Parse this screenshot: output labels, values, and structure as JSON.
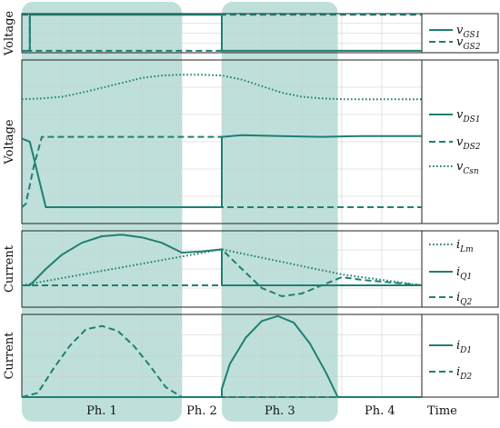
{
  "chart_data": {
    "type": "line",
    "x_axis_label": "Time",
    "phases": [
      {
        "label": "Ph. 1",
        "start": 0.0,
        "end": 0.4,
        "shaded": true
      },
      {
        "label": "Ph. 2",
        "start": 0.4,
        "end": 0.5,
        "shaded": false
      },
      {
        "label": "Ph. 3",
        "start": 0.5,
        "end": 0.79,
        "shaded": true
      },
      {
        "label": "Ph. 4",
        "start": 0.79,
        "end": 1.0,
        "shaded": false
      }
    ],
    "colors": {
      "trace": "#1f7f72",
      "shade": "#bfe0da",
      "grid": "#cccccc"
    },
    "panels": [
      {
        "ylabel": "Voltage",
        "ylim": [
          0,
          1
        ],
        "series": [
          {
            "name": "v",
            "sub": "GS1",
            "style": "solid",
            "x": [
              0,
              0.02,
              0.02,
              0.5,
              0.5,
              1.0
            ],
            "y": [
              0.05,
              0.05,
              0.97,
              0.97,
              0.05,
              0.05
            ]
          },
          {
            "name": "v",
            "sub": "GS2",
            "style": "dashed",
            "x": [
              0,
              0.02,
              0.02,
              0.5,
              0.5,
              1.0
            ],
            "y": [
              0.97,
              0.97,
              0.05,
              0.05,
              0.97,
              0.97
            ]
          }
        ]
      },
      {
        "ylabel": "Voltage",
        "ylim": [
          0,
          1
        ],
        "series": [
          {
            "name": "v",
            "sub": "DS1",
            "style": "solid",
            "x": [
              0,
              0.02,
              0.04,
              0.06,
              0.4,
              0.5,
              0.5,
              0.55,
              0.65,
              0.75,
              0.85,
              1.0
            ],
            "y": [
              0.52,
              0.5,
              0.3,
              0.1,
              0.1,
              0.1,
              0.53,
              0.54,
              0.535,
              0.53,
              0.535,
              0.535
            ]
          },
          {
            "name": "v",
            "sub": "DS2",
            "style": "dashed",
            "x": [
              0,
              0.01,
              0.03,
              0.05,
              0.4,
              0.5,
              0.5,
              1.0
            ],
            "y": [
              0.1,
              0.12,
              0.35,
              0.53,
              0.53,
              0.53,
              0.1,
              0.1
            ]
          },
          {
            "name": "v",
            "sub": "Csn",
            "style": "dotted",
            "x": [
              0,
              0.05,
              0.1,
              0.15,
              0.2,
              0.25,
              0.3,
              0.35,
              0.4,
              0.45,
              0.5,
              0.55,
              0.6,
              0.65,
              0.7,
              0.75,
              0.8,
              1.0
            ],
            "y": [
              0.76,
              0.765,
              0.775,
              0.8,
              0.83,
              0.86,
              0.89,
              0.905,
              0.91,
              0.91,
              0.905,
              0.88,
              0.84,
              0.8,
              0.775,
              0.765,
              0.76,
              0.76
            ]
          }
        ]
      },
      {
        "ylabel": "Current",
        "ylim": [
          -0.4,
          1
        ],
        "series": [
          {
            "name": "i",
            "sub": "Lm",
            "style": "dotted",
            "x": [
              0,
              0.5,
              0.8,
              1.0
            ],
            "y": [
              0.0,
              0.66,
              0.2,
              0.0
            ]
          },
          {
            "name": "i",
            "sub": "Q1",
            "style": "solid",
            "x": [
              0,
              0.02,
              0.06,
              0.1,
              0.15,
              0.2,
              0.25,
              0.3,
              0.35,
              0.4,
              0.45,
              0.5,
              0.5,
              1.0
            ],
            "y": [
              0.0,
              0.0,
              0.3,
              0.56,
              0.78,
              0.9,
              0.93,
              0.88,
              0.78,
              0.6,
              0.62,
              0.66,
              0.0,
              0.0
            ]
          },
          {
            "name": "i",
            "sub": "Q2",
            "style": "dashed",
            "x": [
              0,
              0.5,
              0.5,
              0.55,
              0.6,
              0.65,
              0.7,
              0.75,
              0.8,
              0.85,
              1.0
            ],
            "y": [
              0.0,
              0.0,
              0.66,
              0.3,
              -0.05,
              -0.2,
              -0.15,
              0.0,
              0.15,
              0.1,
              0.0
            ]
          }
        ]
      },
      {
        "ylabel": "Current",
        "ylim": [
          0,
          1
        ],
        "series": [
          {
            "name": "i",
            "sub": "D1",
            "style": "solid",
            "x": [
              0,
              0.5,
              0.5,
              0.52,
              0.56,
              0.6,
              0.64,
              0.68,
              0.72,
              0.76,
              0.79,
              1.0
            ],
            "y": [
              0.0,
              0.0,
              0.1,
              0.4,
              0.72,
              0.92,
              0.98,
              0.9,
              0.65,
              0.3,
              0.0,
              0.0
            ]
          },
          {
            "name": "i",
            "sub": "D2",
            "style": "dashed",
            "x": [
              0,
              0.04,
              0.08,
              0.12,
              0.16,
              0.2,
              0.24,
              0.28,
              0.32,
              0.36,
              0.4,
              1.0
            ],
            "y": [
              0.0,
              0.05,
              0.35,
              0.62,
              0.82,
              0.86,
              0.8,
              0.62,
              0.38,
              0.12,
              0.0,
              0.0
            ]
          }
        ]
      }
    ]
  }
}
